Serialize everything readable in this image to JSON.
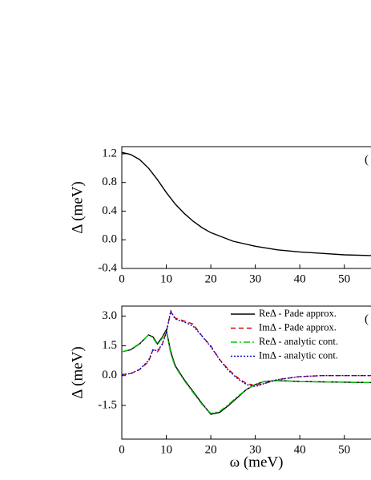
{
  "chart_data": [
    {
      "type": "line",
      "ylabel": "Δ (meV)",
      "annotation": "(",
      "x": [
        0,
        2,
        4,
        6,
        8,
        10,
        12,
        14,
        16,
        18,
        20,
        25,
        30,
        35,
        40,
        45,
        50,
        56
      ],
      "series": [
        {
          "name": null,
          "color": "#000000",
          "dash": "solid",
          "values": [
            1.22,
            1.19,
            1.12,
            1.0,
            0.84,
            0.66,
            0.5,
            0.37,
            0.26,
            0.17,
            0.1,
            -0.02,
            -0.09,
            -0.14,
            -0.17,
            -0.19,
            -0.21,
            -0.22
          ]
        }
      ],
      "xlim": [
        0,
        56
      ],
      "xticks": [
        0,
        10,
        20,
        30,
        40,
        50
      ],
      "ylim": [
        -0.4,
        1.3
      ],
      "yticks": [
        -0.4,
        {
          "value": 0,
          "label": "0.0"
        },
        0.4,
        0.8,
        1.2
      ]
    },
    {
      "type": "line",
      "ylabel": "Δ (meV)",
      "xlabel": "ω (meV)",
      "annotation": "(",
      "x": [
        0,
        2,
        4,
        6,
        7,
        8,
        9,
        10,
        11,
        12,
        14,
        16,
        18,
        20,
        22,
        24,
        26,
        28,
        30,
        32,
        35,
        40,
        45,
        50,
        56
      ],
      "series": [
        {
          "name": "ReΔ - Pade approx.",
          "color": "#000000",
          "dash": "solid",
          "values": [
            1.2,
            1.3,
            1.6,
            2.05,
            1.95,
            1.6,
            1.9,
            2.3,
            1.2,
            0.5,
            -0.2,
            -0.8,
            -1.4,
            -1.95,
            -1.85,
            -1.5,
            -1.1,
            -0.7,
            -0.45,
            -0.3,
            -0.25,
            -0.3,
            -0.32,
            -0.33,
            -0.35
          ]
        },
        {
          "name": "ImΔ - Pade approx.",
          "color": "#e00000",
          "dash": "dashed",
          "values": [
            0.05,
            0.1,
            0.3,
            0.7,
            1.3,
            1.2,
            1.5,
            2.2,
            3.2,
            2.9,
            2.75,
            2.6,
            2.0,
            1.5,
            0.8,
            0.3,
            -0.1,
            -0.4,
            -0.5,
            -0.4,
            -0.2,
            -0.05,
            0,
            0,
            0
          ]
        },
        {
          "name": "ReΔ - analytic cont.",
          "color": "#00cc00",
          "dash": "dashdot",
          "values": [
            1.2,
            1.32,
            1.62,
            2.05,
            1.9,
            1.55,
            1.85,
            2.25,
            1.1,
            0.45,
            -0.25,
            -0.85,
            -1.45,
            -1.9,
            -1.8,
            -1.45,
            -1.05,
            -0.7,
            -0.45,
            -0.3,
            -0.25,
            -0.3,
            -0.32,
            -0.33,
            -0.35
          ]
        },
        {
          "name": "ImΔ - analytic cont.",
          "color": "#0000cc",
          "dash": "dotted",
          "values": [
            0.05,
            0.1,
            0.32,
            0.75,
            1.3,
            1.25,
            1.55,
            2.15,
            3.25,
            2.85,
            2.7,
            2.5,
            2.0,
            1.45,
            0.8,
            0.25,
            -0.15,
            -0.45,
            -0.55,
            -0.4,
            -0.2,
            -0.05,
            0,
            0,
            0
          ]
        }
      ],
      "xlim": [
        0,
        56
      ],
      "xticks": [
        0,
        10,
        20,
        30,
        40,
        50
      ],
      "ylim": [
        -3.2,
        3.5
      ],
      "yticks": [
        -1.5,
        {
          "value": 0,
          "label": "0.0"
        },
        1.5,
        {
          "value": 3,
          "label": "3.0"
        }
      ]
    }
  ]
}
